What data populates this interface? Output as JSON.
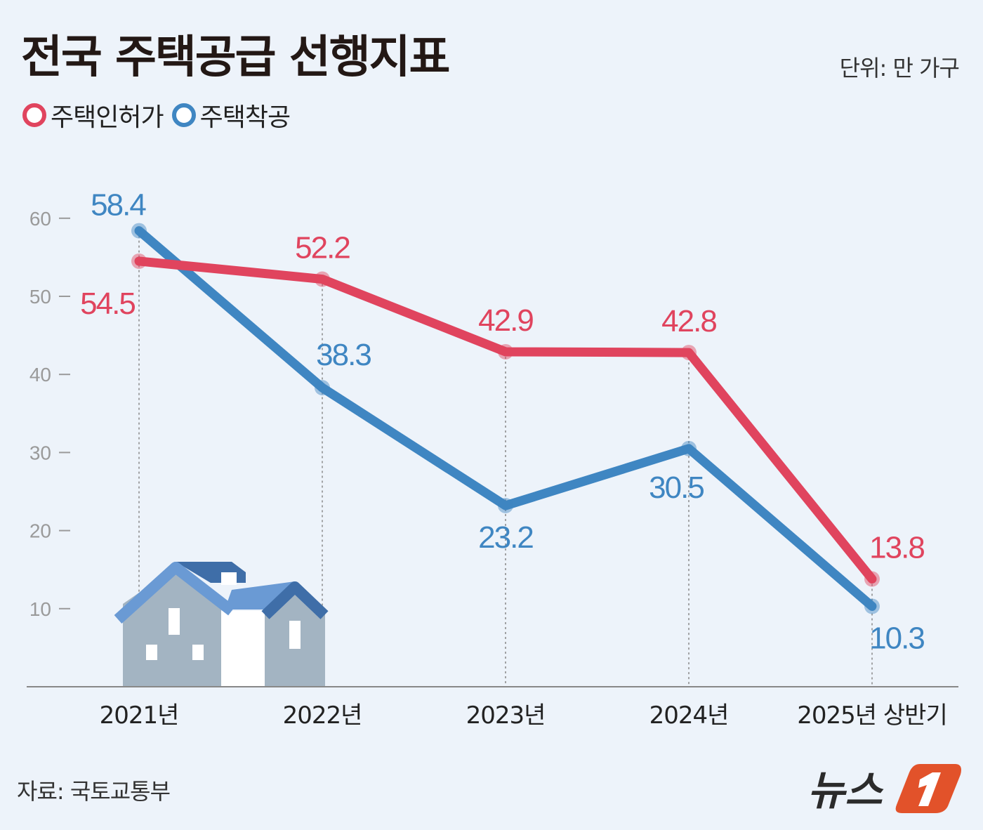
{
  "header": {
    "title": "전국 주택공급 선행지표",
    "unit": "단위: 만 가구"
  },
  "footer": {
    "source": "자료: 국토교통부",
    "logo_text": "뉴스1"
  },
  "colors": {
    "background": "#edf3fa",
    "permit": "#e0445e",
    "start": "#3f86c2",
    "logo": "#e2522a"
  },
  "chart_data": {
    "type": "line",
    "title": "전국 주택공급 선행지표",
    "unit": "단위: 만 가구",
    "categories": [
      "2021년",
      "2022년",
      "2023년",
      "2024년",
      "2025년 상반기"
    ],
    "series": [
      {
        "name": "주택인허가",
        "color": "#e0445e",
        "values": [
          54.5,
          52.2,
          42.9,
          42.8,
          13.8
        ]
      },
      {
        "name": "주택착공",
        "color": "#3f86c2",
        "values": [
          58.4,
          38.3,
          23.2,
          30.5,
          10.3
        ]
      }
    ],
    "yticks": [
      10,
      20,
      30,
      40,
      50,
      60
    ],
    "ylim": [
      0,
      60
    ],
    "grid": false,
    "legend": "top-left"
  }
}
